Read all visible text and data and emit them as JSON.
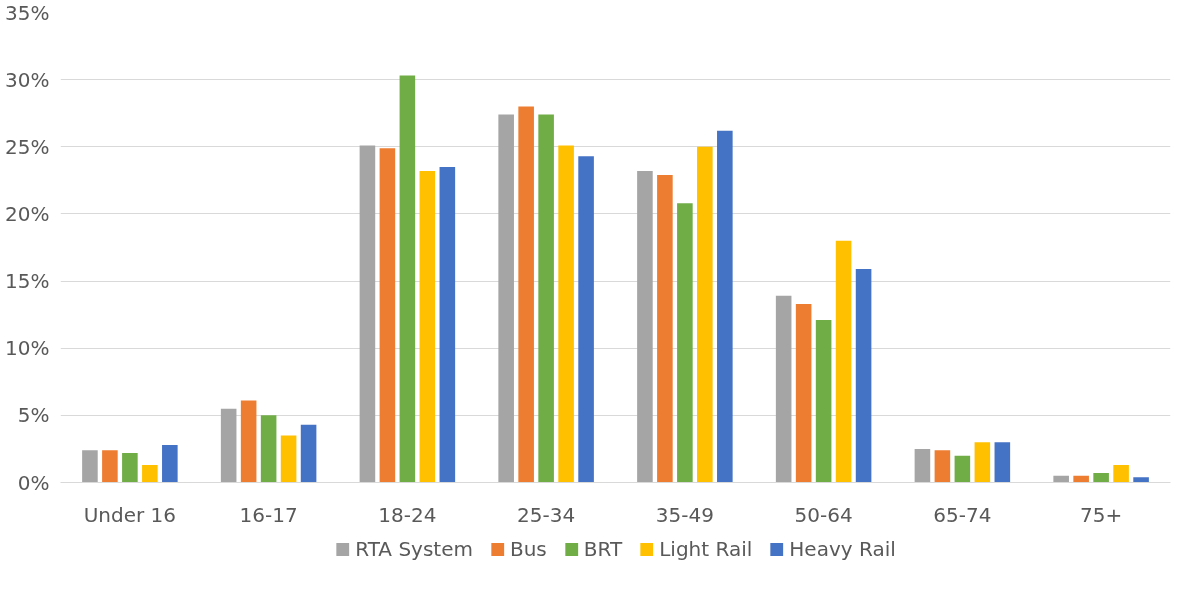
{
  "chart_data": {
    "type": "bar",
    "categories": [
      "Under 16",
      "16-17",
      "18-24",
      "25-34",
      "35-49",
      "50-64",
      "65-74",
      "75+"
    ],
    "series": [
      {
        "name": "RTA System",
        "color": "#a5a5a5",
        "values": [
          2.4,
          5.5,
          25.1,
          27.4,
          23.2,
          13.9,
          2.5,
          0.5
        ]
      },
      {
        "name": "Bus",
        "color": "#ed7d31",
        "values": [
          2.4,
          6.1,
          24.9,
          28.0,
          22.9,
          13.3,
          2.4,
          0.5
        ]
      },
      {
        "name": "BRT",
        "color": "#70ad47",
        "values": [
          2.2,
          5.0,
          30.3,
          27.4,
          20.8,
          12.1,
          2.0,
          0.7
        ]
      },
      {
        "name": "Light Rail",
        "color": "#ffc000",
        "values": [
          1.3,
          3.5,
          23.2,
          25.1,
          25.0,
          18.0,
          3.0,
          1.3
        ]
      },
      {
        "name": "Heavy Rail",
        "color": "#4472c4",
        "values": [
          2.8,
          4.3,
          23.5,
          24.3,
          26.2,
          15.9,
          3.0,
          0.4
        ]
      }
    ],
    "ylim": [
      0,
      35
    ],
    "yticks": [
      {
        "value": 0,
        "label": "0%"
      },
      {
        "value": 5,
        "label": "5%"
      },
      {
        "value": 10,
        "label": "10%"
      },
      {
        "value": 15,
        "label": "15%"
      },
      {
        "value": 20,
        "label": "20%"
      },
      {
        "value": 25,
        "label": "25%"
      },
      {
        "value": 30,
        "label": "30%"
      },
      {
        "value": 35,
        "label": "35%"
      }
    ],
    "grid": "y",
    "legend": "bottom"
  }
}
